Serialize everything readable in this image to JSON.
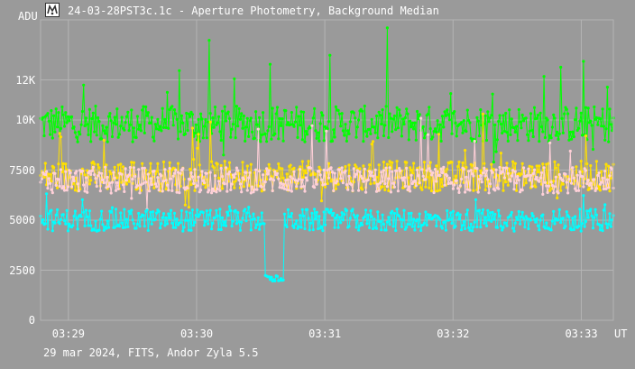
{
  "window": {
    "title": "24-03-28PST3c.1c - Aperture Photometry, Background Median",
    "icon": "telescope-app-icon"
  },
  "footer": {
    "caption": "29 mar 2024, FITS, Andor Zyla 5.5"
  },
  "colors": {
    "background": "#9a9a9a",
    "grid": "#b4b4b4",
    "axis_text": "#ffffff",
    "series": [
      "#00ff00",
      "#ffe000",
      "#ffd0d8",
      "#00ffff"
    ]
  },
  "chart_data": {
    "type": "line",
    "xlabel": "UT",
    "ylabel": "ADU",
    "x_ticks": [
      "03:29",
      "03:30",
      "03:31",
      "03:32",
      "03:33"
    ],
    "y_ticks": [
      "0",
      "2500",
      "5000",
      "7500",
      "10K",
      "12K"
    ],
    "ylim": [
      0,
      15000
    ],
    "xlim": [
      "03:28:47",
      "03:33:15"
    ],
    "grid": true,
    "markers": true,
    "point_count_per_series": 480,
    "series": [
      {
        "color": "#00ff00",
        "values_summary": {
          "typical": 9800,
          "min": 7800,
          "max": 14600
        }
      },
      {
        "color": "#ffe000",
        "values_summary": {
          "typical": 7200,
          "min": 4900,
          "max": 10300
        }
      },
      {
        "color": "#ffd0d8",
        "values_summary": {
          "typical": 7000,
          "min": 5300,
          "max": 10400
        }
      },
      {
        "color": "#00ffff",
        "values_summary": {
          "typical": 5000,
          "min": 1200,
          "max": 6800,
          "dip": {
            "x_range": [
              "03:30:32",
              "03:30:41"
            ],
            "level": 2100
          }
        }
      }
    ]
  }
}
